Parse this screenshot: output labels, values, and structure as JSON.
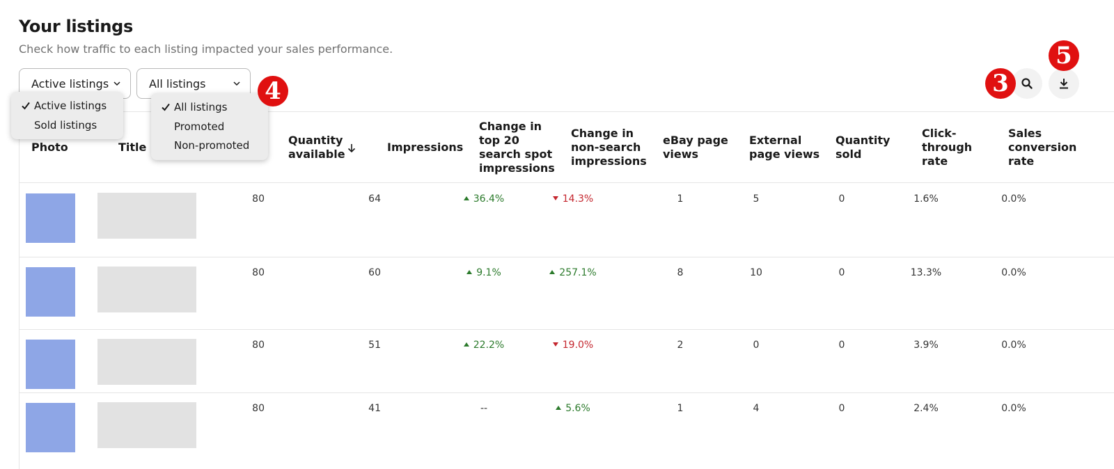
{
  "header": {
    "title": "Your listings",
    "subtitle": "Check how traffic to each listing impacted your sales performance."
  },
  "filters": {
    "status": {
      "selected": "Active listings",
      "options": [
        "Active listings",
        "Sold listings"
      ]
    },
    "promotion": {
      "selected": "All listings",
      "options": [
        "All listings",
        "Promoted",
        "Non-promoted"
      ]
    }
  },
  "badges": {
    "search": "3",
    "dropdown": "4",
    "download": "5"
  },
  "actions": {
    "search_icon": "search-icon",
    "download_icon": "download-icon"
  },
  "table": {
    "columns": {
      "photo": "Photo",
      "title": "Title",
      "qty_available": [
        "Quantity",
        "available"
      ],
      "impressions": "Impressions",
      "top20": [
        "Change in",
        "top 20",
        "search spot",
        "impressions"
      ],
      "nonsearch": [
        "Change in",
        "non-search",
        "impressions"
      ],
      "ebay_views": [
        "eBay page",
        "views"
      ],
      "external_views": [
        "External",
        "page views"
      ],
      "qty_sold": [
        "Quantity",
        "sold"
      ],
      "ctr": [
        "Click-",
        "through",
        "rate"
      ],
      "conversion": [
        "Sales",
        "conversion",
        "rate"
      ]
    },
    "rows": [
      {
        "qty_available": "80",
        "impressions": "64",
        "top20": "36.4%",
        "top20_dir": "up",
        "nonsearch": "14.3%",
        "nonsearch_dir": "down",
        "ebay_views": "1",
        "external_views": "5",
        "qty_sold": "0",
        "ctr": "1.6%",
        "conversion": "0.0%"
      },
      {
        "qty_available": "80",
        "impressions": "60",
        "top20": "9.1%",
        "top20_dir": "up",
        "nonsearch": "257.1%",
        "nonsearch_dir": "up",
        "ebay_views": "8",
        "external_views": "10",
        "qty_sold": "0",
        "ctr": "13.3%",
        "conversion": "0.0%"
      },
      {
        "qty_available": "80",
        "impressions": "51",
        "top20": "22.2%",
        "top20_dir": "up",
        "nonsearch": "19.0%",
        "nonsearch_dir": "down",
        "ebay_views": "2",
        "external_views": "0",
        "qty_sold": "0",
        "ctr": "3.9%",
        "conversion": "0.0%"
      },
      {
        "qty_available": "80",
        "impressions": "41",
        "top20": "--",
        "top20_dir": "none",
        "nonsearch": "5.6%",
        "nonsearch_dir": "up",
        "ebay_views": "1",
        "external_views": "4",
        "qty_sold": "0",
        "ctr": "2.4%",
        "conversion": "0.0%"
      }
    ]
  },
  "colors": {
    "thumb": "#8ea6e6",
    "up": "#2b7a2b",
    "down": "#c4262e",
    "badge": "#e01010"
  }
}
